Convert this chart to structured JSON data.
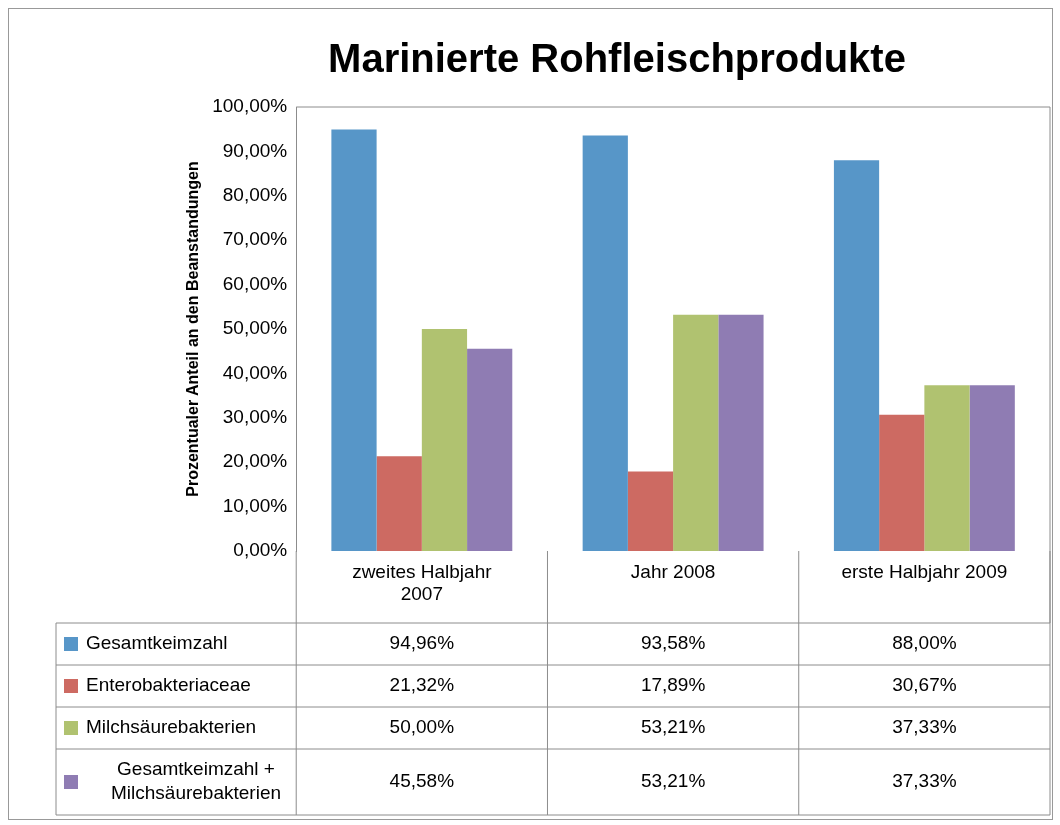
{
  "chart_data": {
    "type": "bar",
    "title": "Marinierte Rohfleischprodukte",
    "ylabel": "Prozentualer Anteil an den Beanstandungen",
    "categories": [
      "zweites Halbjahr 2007",
      "Jahr 2008",
      "erste Halbjahr 2009"
    ],
    "series": [
      {
        "name": "Gesamtkeimzahl",
        "color": "#5796c8",
        "values": [
          94.96,
          93.58,
          88.0
        ],
        "value_labels": [
          "94,96%",
          "93,58%",
          "88,00%"
        ]
      },
      {
        "name": "Enterobakteriaceae",
        "color": "#cd6a62",
        "values": [
          21.32,
          17.89,
          30.67
        ],
        "value_labels": [
          "21,32%",
          "17,89%",
          "30,67%"
        ]
      },
      {
        "name": "Milchsäurebakterien",
        "color": "#b0c270",
        "values": [
          50.0,
          53.21,
          37.33
        ],
        "value_labels": [
          "50,00%",
          "53,21%",
          "37,33%"
        ]
      },
      {
        "name": "Gesamtkeimzahl + Milchsäurebakterien",
        "color": "#8f7cb3",
        "values": [
          45.58,
          53.21,
          37.33
        ],
        "value_labels": [
          "45,58%",
          "53,21%",
          "37,33%"
        ]
      }
    ],
    "ylim": [
      0,
      100
    ],
    "yticks": [
      {
        "value": 0,
        "label": "0,00%"
      },
      {
        "value": 10,
        "label": "10,00%"
      },
      {
        "value": 20,
        "label": "20,00%"
      },
      {
        "value": 30,
        "label": "30,00%"
      },
      {
        "value": 40,
        "label": "40,00%"
      },
      {
        "value": 50,
        "label": "50,00%"
      },
      {
        "value": 60,
        "label": "60,00%"
      },
      {
        "value": 70,
        "label": "70,00%"
      },
      {
        "value": 80,
        "label": "80,00%"
      },
      {
        "value": 90,
        "label": "90,00%"
      },
      {
        "value": 100,
        "label": "100,00%"
      }
    ],
    "grid": false,
    "legend": "bottom"
  }
}
